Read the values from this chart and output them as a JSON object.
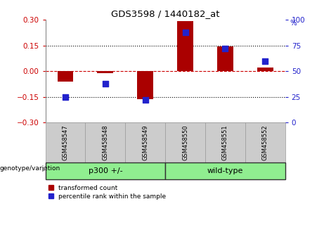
{
  "title": "GDS3598 / 1440182_at",
  "samples": [
    "GSM458547",
    "GSM458548",
    "GSM458549",
    "GSM458550",
    "GSM458551",
    "GSM458552"
  ],
  "red_values": [
    -0.062,
    -0.012,
    -0.162,
    0.292,
    0.143,
    0.022
  ],
  "blue_values": [
    25,
    38,
    22,
    88,
    72,
    60
  ],
  "ylim_left": [
    -0.3,
    0.3
  ],
  "ylim_right": [
    0,
    100
  ],
  "yticks_left": [
    -0.3,
    -0.15,
    0,
    0.15,
    0.3
  ],
  "yticks_right": [
    0,
    25,
    50,
    75,
    100
  ],
  "dotted_hlines": [
    0.15,
    -0.15
  ],
  "dashed_hline": 0,
  "groups": [
    {
      "label": "p300 +/-",
      "start": 0,
      "end": 3,
      "color": "#90ee90"
    },
    {
      "label": "wild-type",
      "start": 3,
      "end": 6,
      "color": "#90ee90"
    }
  ],
  "group_label": "genotype/variation",
  "legend_red": "transformed count",
  "legend_blue": "percentile rank within the sample",
  "bar_color": "#aa0000",
  "blue_color": "#2222cc",
  "dashed_zero_color": "#cc0000",
  "bg_color": "#ffffff",
  "tick_color_left": "#cc0000",
  "tick_color_right": "#2222cc",
  "bar_width": 0.4,
  "blue_marker_size": 32,
  "label_bg": "#cccccc",
  "label_border": "#999999"
}
